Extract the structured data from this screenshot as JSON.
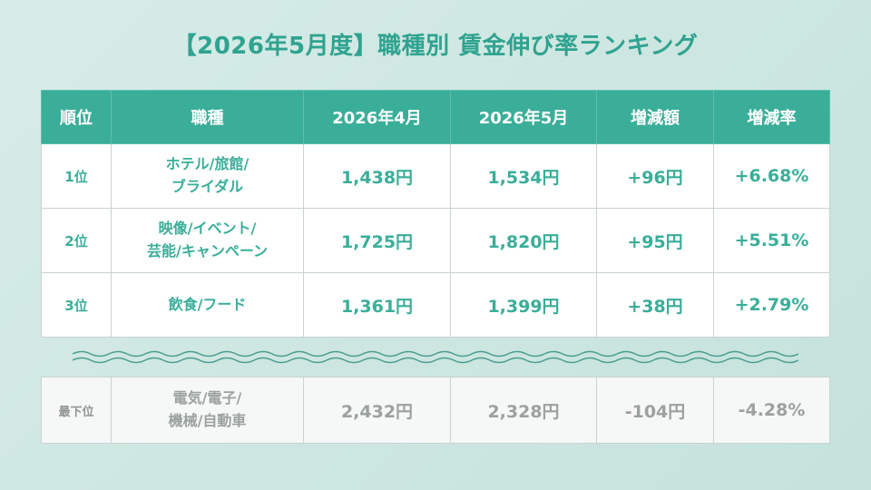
{
  "title": "【2026年5月度】職種別 賃金伸び率ランキング",
  "headers": [
    "順位",
    "職種",
    "2026年4月",
    "2026年5月",
    "増減額",
    "増減率"
  ],
  "rows": [
    {
      "rank": "1位",
      "job_line1": "ホテル/旅館/",
      "job_line2": "ブライダル",
      "apr": "1,438円",
      "may": "1,534円",
      "diff": "+96円",
      "rate": "+6.68%"
    },
    {
      "rank": "2位",
      "job_line1": "映像/イベント/",
      "job_line2": "芸能/キャンペーン",
      "apr": "1,725円",
      "may": "1,820円",
      "diff": "+95円",
      "rate": "+5.51%"
    },
    {
      "rank": "3位",
      "job_line1": "飲食/フード",
      "job_line2": "",
      "apr": "1,361円",
      "may": "1,399円",
      "diff": "+38円",
      "rate": "+2.79%"
    }
  ],
  "last": {
    "rank": "最下位",
    "job_line1": "電気/電子/",
    "job_line2": "機械/自動車",
    "apr": "2,432円",
    "may": "2,328円",
    "diff": "-104円",
    "rate": "-4.28%"
  },
  "colors": {
    "accent": "#3aae99",
    "muted": "#9aa1a0",
    "background": "#cfe7e2"
  }
}
